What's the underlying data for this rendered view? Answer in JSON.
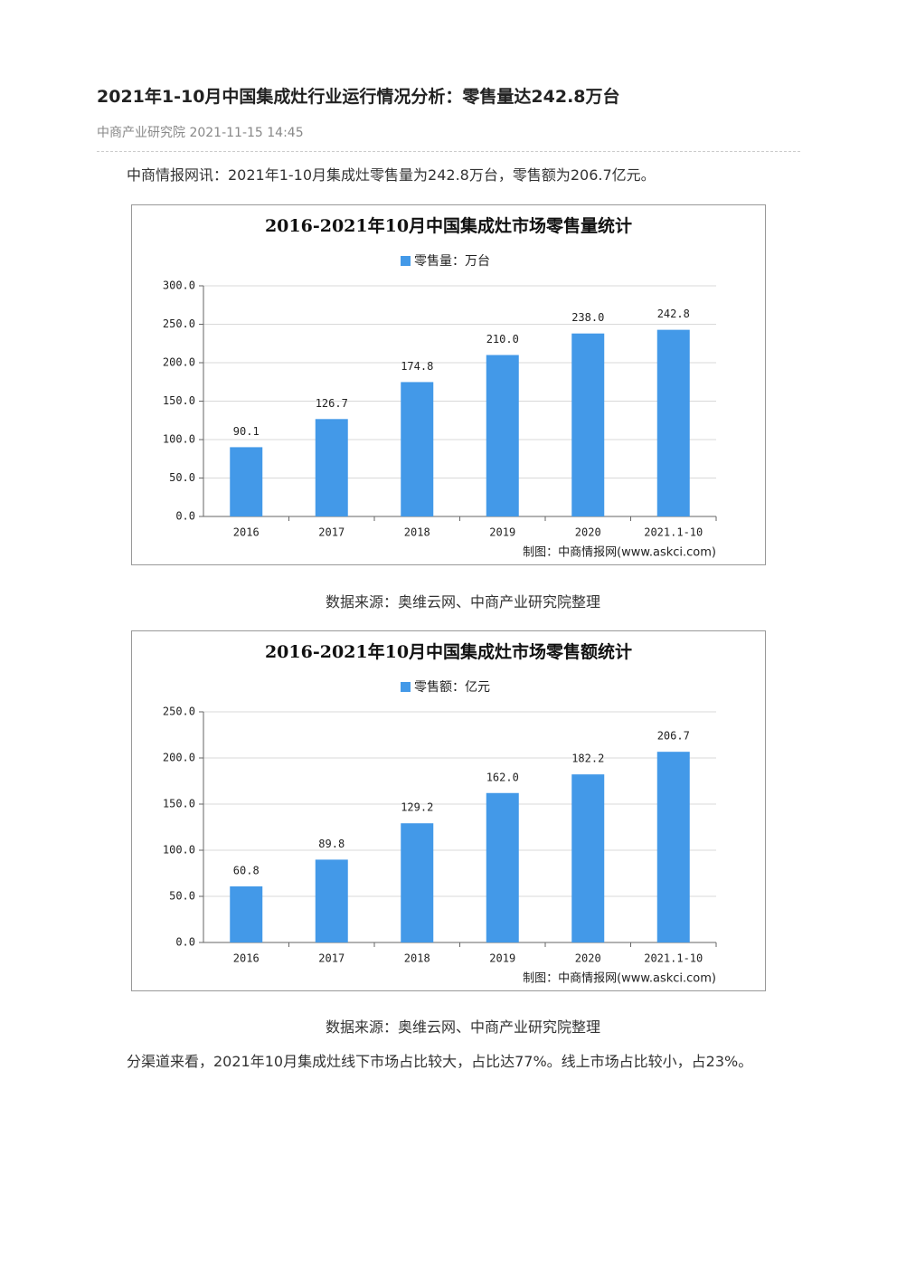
{
  "header": {
    "title": "2021年1-10月中国集成灶行业运行情况分析：零售量达242.8万台",
    "source": "中商产业研究院",
    "date": "2021-11-15 14:45"
  },
  "intro": "中商情报网讯：2021年1-10月集成灶零售量为242.8万台，零售额为206.7亿元。",
  "chart_data": [
    {
      "type": "bar",
      "title": "2016-2021年10月中国集成灶市场零售量统计",
      "categories": [
        "2016",
        "2017",
        "2018",
        "2019",
        "2020",
        "2021.1-10"
      ],
      "series": [
        {
          "name": "零售量：万台",
          "color": "#4399e8",
          "values": [
            90.1,
            126.7,
            174.8,
            210,
            238,
            242.8
          ],
          "value_labels": [
            "90.1",
            "126.7",
            "174.8",
            "210.0",
            "238.0",
            "242.8"
          ]
        }
      ],
      "ylim": [
        0,
        300
      ],
      "yticks": [
        {
          "value": 0,
          "label": "0.0"
        },
        {
          "value": 50,
          "label": "50.0"
        },
        {
          "value": 100,
          "label": "100.0"
        },
        {
          "value": 150,
          "label": "150.0"
        },
        {
          "value": 200,
          "label": "200.0"
        },
        {
          "value": 250,
          "label": "250.0"
        },
        {
          "value": 300,
          "label": "300.0"
        }
      ],
      "grid": true,
      "credit": "制图：中商情报网(www.askci.com)"
    },
    {
      "type": "bar",
      "title": "2016-2021年10月中国集成灶市场零售额统计",
      "categories": [
        "2016",
        "2017",
        "2018",
        "2019",
        "2020",
        "2021.1-10"
      ],
      "series": [
        {
          "name": "零售额：亿元",
          "color": "#4399e8",
          "values": [
            60.8,
            89.8,
            129.2,
            162,
            182.2,
            206.7
          ],
          "value_labels": [
            "60.8",
            "89.8",
            "129.2",
            "162.0",
            "182.2",
            "206.7"
          ]
        }
      ],
      "ylim": [
        0,
        250
      ],
      "yticks": [
        {
          "value": 0,
          "label": "0.0"
        },
        {
          "value": 50,
          "label": "50.0"
        },
        {
          "value": 100,
          "label": "100.0"
        },
        {
          "value": 150,
          "label": "150.0"
        },
        {
          "value": 200,
          "label": "200.0"
        },
        {
          "value": 250,
          "label": "250.0"
        }
      ],
      "grid": true,
      "credit": "制图：中商情报网(www.askci.com)"
    }
  ],
  "captions": [
    "数据来源：奥维云网、中商产业研究院整理",
    "数据来源：奥维云网、中商产业研究院整理"
  ],
  "closing": "分渠道来看，2021年10月集成灶线下市场占比较大，占比达77%。线上市场占比较小，占23%。"
}
